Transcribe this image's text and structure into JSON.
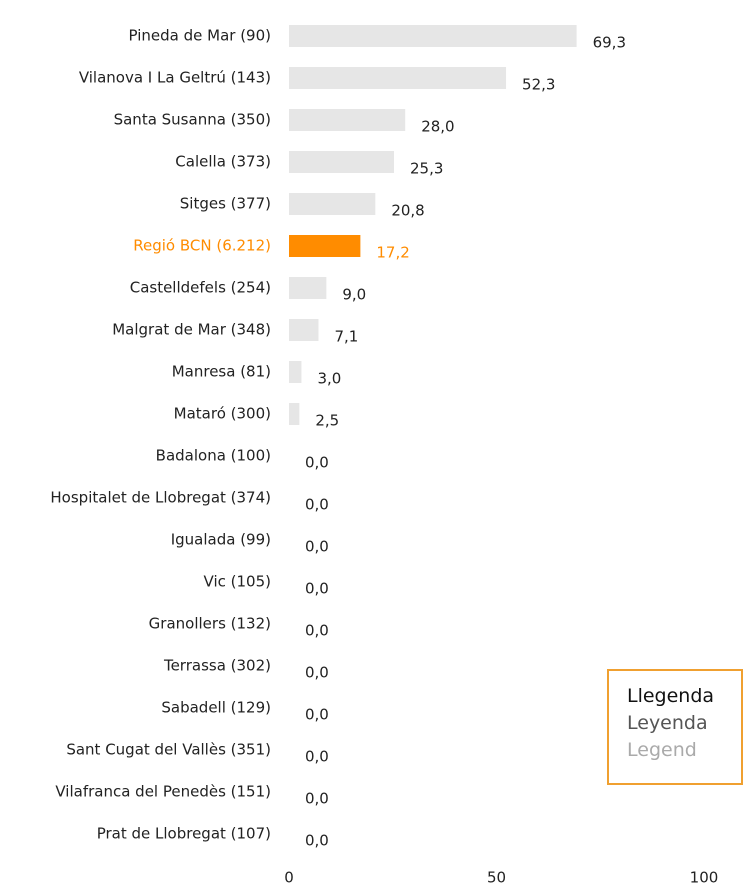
{
  "chart_data": {
    "type": "barh",
    "categories": [
      "Pineda de Mar (90)",
      "Vilanova I La Geltrú (143)",
      "Santa Susanna (350)",
      "Calella (373)",
      "Sitges (377)",
      "Regió BCN (6.212)",
      "Castelldefels (254)",
      "Malgrat de Mar (348)",
      "Manresa (81)",
      "Mataró (300)",
      "Badalona (100)",
      "Hospitalet de Llobregat (374)",
      "Igualada (99)",
      "Vic (105)",
      "Granollers (132)",
      "Terrassa (302)",
      "Sabadell (129)",
      "Sant Cugat del Vallès (351)",
      "Vilafranca del Penedès (151)",
      "Prat de Llobregat (107)"
    ],
    "values": [
      69.3,
      52.3,
      28.0,
      25.3,
      20.8,
      17.2,
      9.0,
      7.1,
      3.0,
      2.5,
      0,
      0,
      0,
      0,
      0,
      0,
      0,
      0,
      0,
      0
    ],
    "value_labels": [
      "69,3",
      "52,3",
      "28,0",
      "25,3",
      "20,8",
      "17,2",
      "9,0",
      "7,1",
      "3,0",
      "2,5",
      "0,0",
      "0,0",
      "0,0",
      "0,0",
      "0,0",
      "0,0",
      "0,0",
      "0,0",
      "0,0",
      "0,0"
    ],
    "color": "#e6e6e6",
    "highlight_index": 5,
    "highlight_color": "#ff8c00",
    "xlim": [
      0,
      100
    ],
    "xticks": [
      0,
      50,
      100
    ],
    "grid": false,
    "legend_box": [
      "Llegenda",
      "Leyenda",
      "Legend"
    ]
  }
}
